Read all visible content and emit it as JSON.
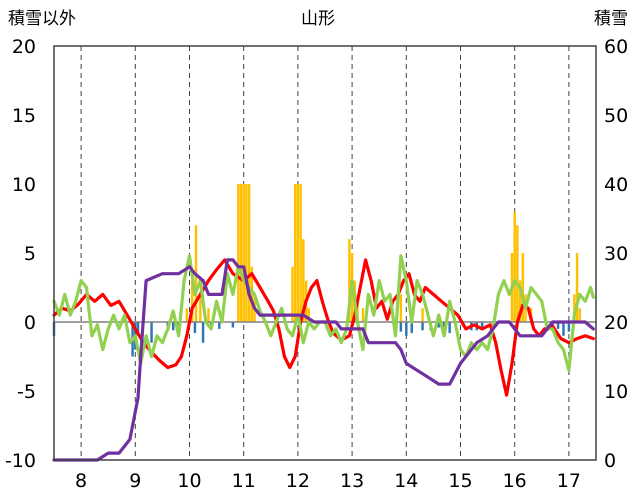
{
  "chart_data": {
    "type": "line",
    "title": "山形",
    "left_axis_label": "積雪以外",
    "right_axis_label": "積雪",
    "ylim_left": [
      -10,
      20
    ],
    "left_ticks": [
      "20",
      "15",
      "10",
      "5",
      "0",
      "-5",
      "-10"
    ],
    "ylim_right": [
      0,
      60
    ],
    "right_ticks": [
      "60",
      "50",
      "40",
      "30",
      "20",
      "10",
      "0"
    ],
    "xlim": [
      7.5,
      17.5
    ],
    "x_ticks": [
      8,
      9,
      10,
      11,
      12,
      13,
      14,
      15,
      16,
      17
    ],
    "x_tick_labels": [
      "8",
      "9",
      "10",
      "11",
      "12",
      "13",
      "14",
      "15",
      "16",
      "17"
    ],
    "grid": "vertical dashed at each x tick",
    "series": [
      {
        "kind": "bar",
        "axis": "left",
        "color": "#ffc000",
        "points": [
          [
            9.95,
            1
          ],
          [
            10.05,
            3
          ],
          [
            10.12,
            7
          ],
          [
            10.2,
            2
          ],
          [
            10.35,
            1
          ],
          [
            10.9,
            10
          ],
          [
            10.95,
            10
          ],
          [
            11.0,
            10
          ],
          [
            11.05,
            10
          ],
          [
            11.1,
            10
          ],
          [
            11.15,
            4
          ],
          [
            11.2,
            2
          ],
          [
            11.9,
            4
          ],
          [
            11.95,
            10
          ],
          [
            12.0,
            10
          ],
          [
            12.05,
            10
          ],
          [
            12.1,
            6
          ],
          [
            12.15,
            3
          ],
          [
            12.2,
            1
          ],
          [
            12.95,
            6
          ],
          [
            13.0,
            5
          ],
          [
            13.05,
            3
          ],
          [
            13.1,
            2
          ],
          [
            13.2,
            1
          ],
          [
            13.9,
            2
          ],
          [
            14.3,
            1
          ],
          [
            15.95,
            5
          ],
          [
            16.0,
            8
          ],
          [
            16.05,
            7
          ],
          [
            16.1,
            3
          ],
          [
            16.15,
            5
          ],
          [
            16.2,
            2
          ],
          [
            16.3,
            1
          ],
          [
            17.1,
            2
          ],
          [
            17.15,
            5
          ],
          [
            17.2,
            1
          ]
        ]
      },
      {
        "kind": "bar",
        "axis": "left",
        "color": "#2e75b6",
        "points": [
          [
            7.5,
            -1
          ],
          [
            8.95,
            -2.5
          ],
          [
            9.0,
            -2
          ],
          [
            9.05,
            -1
          ],
          [
            9.3,
            -1.5
          ],
          [
            9.6,
            -0.6
          ],
          [
            9.7,
            -0.6
          ],
          [
            9.8,
            -0.5
          ],
          [
            10.1,
            -0.8
          ],
          [
            10.25,
            -1.5
          ],
          [
            10.4,
            -0.4
          ],
          [
            10.55,
            -0.5
          ],
          [
            10.8,
            -0.4
          ],
          [
            13.9,
            -0.7
          ],
          [
            14.0,
            -1
          ],
          [
            14.1,
            -0.8
          ],
          [
            14.3,
            -0.6
          ],
          [
            14.45,
            -0.6
          ],
          [
            14.6,
            -0.4
          ],
          [
            14.7,
            -0.6
          ],
          [
            14.8,
            -0.8
          ],
          [
            15.2,
            -0.6
          ],
          [
            15.3,
            -0.6
          ],
          [
            15.4,
            -0.5
          ],
          [
            16.7,
            -0.6
          ],
          [
            16.8,
            -0.5
          ],
          [
            16.9,
            -1
          ],
          [
            17.0,
            -0.7
          ]
        ]
      },
      {
        "kind": "line",
        "axis": "left",
        "color": "#ff0000",
        "points": [
          [
            7.5,
            0.5
          ],
          [
            7.65,
            1
          ],
          [
            7.8,
            0.8
          ],
          [
            7.95,
            1.3
          ],
          [
            8.1,
            2
          ],
          [
            8.25,
            1.5
          ],
          [
            8.4,
            2
          ],
          [
            8.55,
            1.2
          ],
          [
            8.7,
            1.5
          ],
          [
            8.85,
            0.5
          ],
          [
            9.0,
            -0.5
          ],
          [
            9.15,
            -1.5
          ],
          [
            9.3,
            -2.2
          ],
          [
            9.45,
            -2.8
          ],
          [
            9.6,
            -3.3
          ],
          [
            9.75,
            -3.1
          ],
          [
            9.85,
            -2.5
          ],
          [
            9.95,
            -1
          ],
          [
            10.05,
            1
          ],
          [
            10.2,
            2
          ],
          [
            10.35,
            3
          ],
          [
            10.5,
            3.8
          ],
          [
            10.65,
            4.5
          ],
          [
            10.8,
            3.5
          ],
          [
            11.0,
            3
          ],
          [
            11.15,
            3.5
          ],
          [
            11.3,
            2.5
          ],
          [
            11.45,
            1.5
          ],
          [
            11.55,
            0.8
          ],
          [
            11.65,
            -0.5
          ],
          [
            11.75,
            -2.5
          ],
          [
            11.85,
            -3.3
          ],
          [
            11.95,
            -2.5
          ],
          [
            12.05,
            0
          ],
          [
            12.15,
            1.5
          ],
          [
            12.25,
            2.5
          ],
          [
            12.35,
            3
          ],
          [
            12.45,
            1.5
          ],
          [
            12.55,
            0.2
          ],
          [
            12.65,
            -0.8
          ],
          [
            12.8,
            -1.3
          ],
          [
            12.95,
            -1
          ],
          [
            13.05,
            0.5
          ],
          [
            13.15,
            2.5
          ],
          [
            13.25,
            4.5
          ],
          [
            13.35,
            3
          ],
          [
            13.45,
            1
          ],
          [
            13.55,
            1.5
          ],
          [
            13.65,
            0.2
          ],
          [
            13.75,
            1.5
          ],
          [
            13.85,
            2
          ],
          [
            13.95,
            3
          ],
          [
            14.05,
            3.5
          ],
          [
            14.15,
            2
          ],
          [
            14.25,
            1.5
          ],
          [
            14.35,
            2.5
          ],
          [
            14.5,
            2
          ],
          [
            14.65,
            1.5
          ],
          [
            14.8,
            1
          ],
          [
            14.95,
            0.5
          ],
          [
            15.1,
            -0.5
          ],
          [
            15.25,
            -0.2
          ],
          [
            15.4,
            -0.5
          ],
          [
            15.55,
            -0.2
          ],
          [
            15.65,
            -1.5
          ],
          [
            15.75,
            -3.5
          ],
          [
            15.85,
            -5.3
          ],
          [
            15.95,
            -3
          ],
          [
            16.05,
            0
          ],
          [
            16.15,
            1.2
          ],
          [
            16.25,
            1
          ],
          [
            16.35,
            -0.5
          ],
          [
            16.45,
            -1
          ],
          [
            16.55,
            -0.5
          ],
          [
            16.7,
            -0.3
          ],
          [
            16.85,
            -1.2
          ],
          [
            17.0,
            -1.5
          ],
          [
            17.15,
            -1.2
          ],
          [
            17.3,
            -1
          ],
          [
            17.45,
            -1.2
          ]
        ]
      },
      {
        "kind": "line",
        "axis": "left",
        "color": "#92d050",
        "points": [
          [
            7.5,
            1.5
          ],
          [
            7.6,
            0.5
          ],
          [
            7.7,
            2
          ],
          [
            7.8,
            0.5
          ],
          [
            7.9,
            1.5
          ],
          [
            8.0,
            3
          ],
          [
            8.1,
            2.5
          ],
          [
            8.2,
            -1
          ],
          [
            8.3,
            -0.2
          ],
          [
            8.4,
            -2
          ],
          [
            8.5,
            -0.5
          ],
          [
            8.6,
            0.5
          ],
          [
            8.7,
            -0.5
          ],
          [
            8.8,
            0.5
          ],
          [
            8.9,
            -1.5
          ],
          [
            9.0,
            -1
          ],
          [
            9.1,
            -3
          ],
          [
            9.2,
            -1
          ],
          [
            9.3,
            -2.5
          ],
          [
            9.4,
            -1
          ],
          [
            9.5,
            -1.5
          ],
          [
            9.6,
            -0.5
          ],
          [
            9.7,
            0.8
          ],
          [
            9.8,
            -1
          ],
          [
            9.9,
            3
          ],
          [
            10.0,
            4.8
          ],
          [
            10.1,
            2
          ],
          [
            10.2,
            3
          ],
          [
            10.3,
            0
          ],
          [
            10.4,
            -0.5
          ],
          [
            10.5,
            1.5
          ],
          [
            10.6,
            0
          ],
          [
            10.7,
            3.5
          ],
          [
            10.8,
            2
          ],
          [
            10.9,
            4
          ],
          [
            11.0,
            3
          ],
          [
            11.1,
            2.5
          ],
          [
            11.2,
            2
          ],
          [
            11.3,
            0.8
          ],
          [
            11.4,
            0
          ],
          [
            11.5,
            -1
          ],
          [
            11.6,
            0
          ],
          [
            11.7,
            1
          ],
          [
            11.8,
            -0.5
          ],
          [
            11.9,
            -1
          ],
          [
            12.0,
            0.5
          ],
          [
            12.1,
            -1.5
          ],
          [
            12.2,
            0
          ],
          [
            12.3,
            -0.5
          ],
          [
            12.4,
            0
          ],
          [
            12.5,
            0
          ],
          [
            12.6,
            -1
          ],
          [
            12.7,
            -0.5
          ],
          [
            12.8,
            -1.5
          ],
          [
            12.9,
            -0.5
          ],
          [
            13.0,
            3
          ],
          [
            13.1,
            0
          ],
          [
            13.2,
            -2
          ],
          [
            13.3,
            2
          ],
          [
            13.4,
            0.5
          ],
          [
            13.5,
            3
          ],
          [
            13.6,
            1.5
          ],
          [
            13.7,
            2
          ],
          [
            13.8,
            -1
          ],
          [
            13.9,
            4.8
          ],
          [
            14.0,
            3
          ],
          [
            14.1,
            0
          ],
          [
            14.2,
            3
          ],
          [
            14.3,
            2
          ],
          [
            14.4,
            0.5
          ],
          [
            14.5,
            -1
          ],
          [
            14.6,
            0.5
          ],
          [
            14.7,
            -1
          ],
          [
            14.8,
            1.5
          ],
          [
            14.9,
            0
          ],
          [
            15.0,
            -2
          ],
          [
            15.1,
            -2.5
          ],
          [
            15.2,
            -1.5
          ],
          [
            15.3,
            -2
          ],
          [
            15.4,
            -1.5
          ],
          [
            15.5,
            -2
          ],
          [
            15.6,
            -0.5
          ],
          [
            15.7,
            2
          ],
          [
            15.8,
            3
          ],
          [
            15.9,
            2
          ],
          [
            16.0,
            3
          ],
          [
            16.1,
            2.5
          ],
          [
            16.2,
            1
          ],
          [
            16.3,
            2.5
          ],
          [
            16.4,
            2
          ],
          [
            16.5,
            1.5
          ],
          [
            16.6,
            -0.5
          ],
          [
            16.7,
            -0.5
          ],
          [
            16.8,
            -1.5
          ],
          [
            16.9,
            -2
          ],
          [
            17.0,
            -3.5
          ],
          [
            17.1,
            0.5
          ],
          [
            17.2,
            2
          ],
          [
            17.3,
            1.5
          ],
          [
            17.4,
            2.5
          ],
          [
            17.45,
            1.8
          ]
        ]
      },
      {
        "kind": "line",
        "axis": "right",
        "color": "#7030a0",
        "points": [
          [
            7.5,
            0
          ],
          [
            8.0,
            0
          ],
          [
            8.3,
            0
          ],
          [
            8.5,
            1
          ],
          [
            8.7,
            1
          ],
          [
            8.8,
            2
          ],
          [
            8.9,
            3
          ],
          [
            8.95,
            5
          ],
          [
            9.0,
            7
          ],
          [
            9.05,
            9
          ],
          [
            9.1,
            15
          ],
          [
            9.2,
            26
          ],
          [
            9.5,
            27
          ],
          [
            9.8,
            27
          ],
          [
            10.0,
            28
          ],
          [
            10.1,
            27
          ],
          [
            10.25,
            26
          ],
          [
            10.35,
            24
          ],
          [
            10.6,
            24
          ],
          [
            10.7,
            29
          ],
          [
            10.8,
            29
          ],
          [
            10.9,
            28
          ],
          [
            11.0,
            28
          ],
          [
            11.1,
            24
          ],
          [
            11.2,
            22
          ],
          [
            11.3,
            21
          ],
          [
            11.5,
            21
          ],
          [
            11.7,
            21
          ],
          [
            11.9,
            21
          ],
          [
            12.1,
            21
          ],
          [
            12.3,
            20
          ],
          [
            12.7,
            20
          ],
          [
            12.8,
            19
          ],
          [
            13.0,
            19
          ],
          [
            13.2,
            19
          ],
          [
            13.3,
            17
          ],
          [
            13.5,
            17
          ],
          [
            13.8,
            17
          ],
          [
            13.9,
            16
          ],
          [
            14.0,
            14
          ],
          [
            14.2,
            13
          ],
          [
            14.4,
            12
          ],
          [
            14.6,
            11
          ],
          [
            14.8,
            11
          ],
          [
            15.0,
            14
          ],
          [
            15.2,
            16
          ],
          [
            15.3,
            17
          ],
          [
            15.5,
            18
          ],
          [
            15.6,
            19
          ],
          [
            15.7,
            20
          ],
          [
            15.9,
            20
          ],
          [
            16.0,
            19
          ],
          [
            16.1,
            18
          ],
          [
            16.3,
            18
          ],
          [
            16.5,
            18
          ],
          [
            16.6,
            19
          ],
          [
            16.7,
            20
          ],
          [
            16.8,
            20
          ],
          [
            17.0,
            20
          ],
          [
            17.1,
            20
          ],
          [
            17.3,
            20
          ],
          [
            17.45,
            19
          ]
        ]
      }
    ]
  }
}
